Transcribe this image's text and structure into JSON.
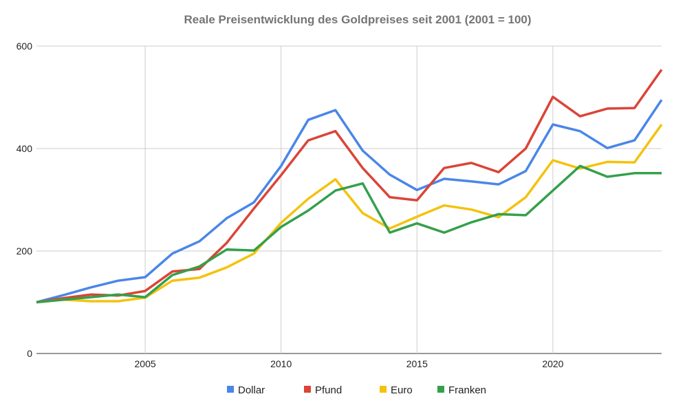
{
  "chart_data": {
    "type": "line",
    "title": "Reale Preisentwicklung des Goldpreises seit 2001 (2001 = 100)",
    "xlabel": "",
    "ylabel": "",
    "x": [
      2001,
      2002,
      2003,
      2004,
      2005,
      2006,
      2007,
      2008,
      2009,
      2010,
      2011,
      2012,
      2013,
      2014,
      2015,
      2016,
      2017,
      2018,
      2019,
      2020,
      2021,
      2022,
      2023,
      2024
    ],
    "xlim": [
      2001,
      2024
    ],
    "ylim": [
      0,
      600
    ],
    "x_ticks": [
      "2005",
      "2010",
      "2015",
      "2020"
    ],
    "y_ticks": [
      "0",
      "200",
      "400",
      "600"
    ],
    "grid": true,
    "legend_position": "bottom",
    "series": [
      {
        "name": "Dollar",
        "color": "#4a86e8",
        "values": [
          100,
          114,
          129,
          142,
          149,
          195,
          219,
          264,
          295,
          366,
          456,
          475,
          396,
          349,
          319,
          341,
          336,
          330,
          356,
          447,
          434,
          401,
          416,
          495
        ]
      },
      {
        "name": "Pfund",
        "color": "#db4437",
        "values": [
          100,
          108,
          115,
          113,
          122,
          160,
          165,
          216,
          283,
          348,
          416,
          434,
          362,
          305,
          299,
          362,
          372,
          354,
          400,
          501,
          463,
          478,
          479,
          554
        ]
      },
      {
        "name": "Euro",
        "color": "#f4c20d",
        "values": [
          100,
          105,
          102,
          102,
          109,
          142,
          148,
          168,
          195,
          255,
          302,
          340,
          274,
          244,
          267,
          289,
          281,
          266,
          305,
          377,
          361,
          374,
          373,
          447
        ]
      },
      {
        "name": "Franken",
        "color": "#34a04b",
        "values": [
          100,
          105,
          110,
          115,
          110,
          153,
          170,
          203,
          201,
          247,
          279,
          318,
          332,
          236,
          254,
          236,
          256,
          272,
          270,
          318,
          366,
          345,
          352,
          352
        ]
      }
    ]
  }
}
